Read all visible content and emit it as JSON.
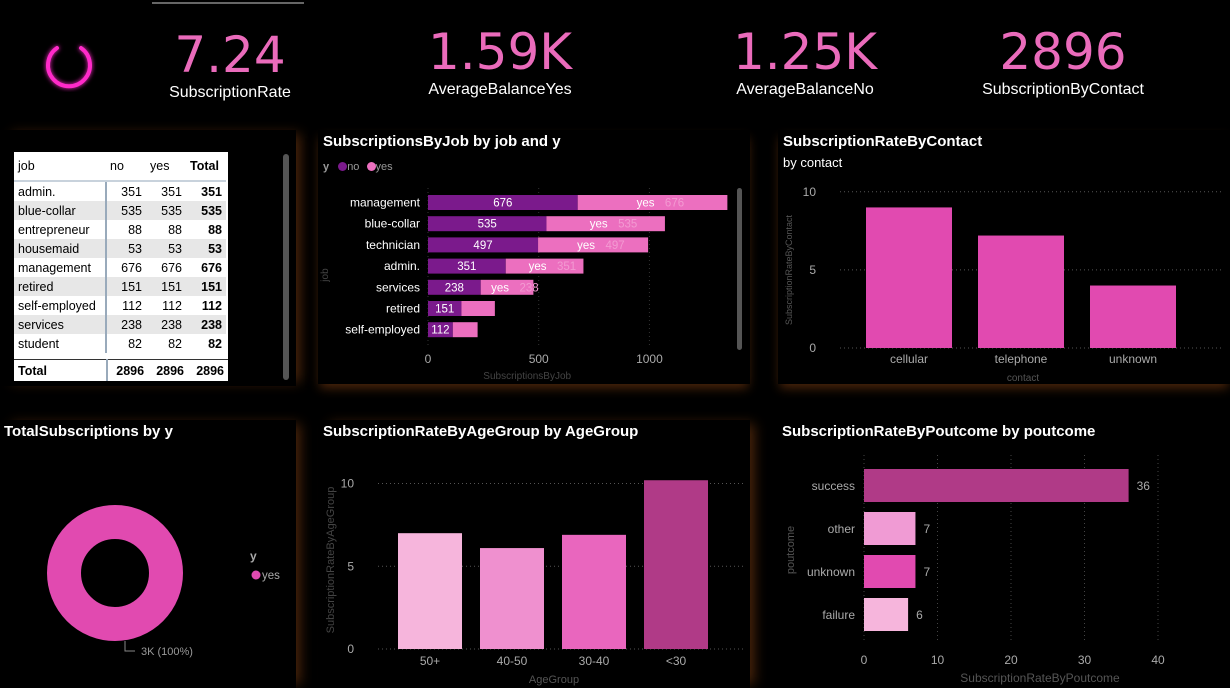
{
  "kpis": [
    {
      "value": "7.24",
      "label": "SubscriptionRate"
    },
    {
      "value": "1.59K",
      "label": "AverageBalanceYes"
    },
    {
      "value": "1.25K",
      "label": "AverageBalanceNo"
    },
    {
      "value": "2896",
      "label": "SubscriptionByContact"
    }
  ],
  "power_icon": "power-icon",
  "matrix": {
    "headers": [
      "job",
      "no",
      "yes",
      "Total"
    ],
    "rows": [
      [
        "admin.",
        "351",
        "351",
        "351"
      ],
      [
        "blue-collar",
        "535",
        "535",
        "535"
      ],
      [
        "entrepreneur",
        "88",
        "88",
        "88"
      ],
      [
        "housemaid",
        "53",
        "53",
        "53"
      ],
      [
        "management",
        "676",
        "676",
        "676"
      ],
      [
        "retired",
        "151",
        "151",
        "151"
      ],
      [
        "self-employed",
        "112",
        "112",
        "112"
      ],
      [
        "services",
        "238",
        "238",
        "238"
      ],
      [
        "student",
        "82",
        "82",
        "82"
      ]
    ],
    "total": [
      "Total",
      "2896",
      "2896",
      "2896"
    ]
  },
  "colors": {
    "accent": "#ea6bbb",
    "no": "#7b1a8c",
    "yes": "#ec6fbf",
    "pink": "#e14ab0",
    "dark_pink": "#b03a87",
    "light_pink": "#f6b5dc"
  },
  "chart_data": [
    {
      "type": "bar",
      "orientation": "horizontal",
      "stacked": true,
      "title": "SubscriptionsByJob by job and y",
      "legend_title": "y",
      "legend": [
        "no",
        "yes"
      ],
      "xlabel": "SubscriptionsByJob",
      "ylabel": "job",
      "categories": [
        "management",
        "blue-collar",
        "technician",
        "admin.",
        "services",
        "retired",
        "self-employed"
      ],
      "series": [
        {
          "name": "no",
          "values": [
            676,
            535,
            497,
            351,
            238,
            151,
            112
          ]
        },
        {
          "name": "yes",
          "values": [
            676,
            535,
            497,
            351,
            238,
            151,
            112
          ]
        }
      ],
      "xticks": [
        "0",
        "500",
        "1000"
      ],
      "xlim": [
        0,
        1400
      ]
    },
    {
      "type": "bar",
      "title": "SubscriptionRateByContact",
      "subtitle": "by contact",
      "xlabel": "contact",
      "ylabel": "SubscriptionRateByContact",
      "categories": [
        "cellular",
        "telephone",
        "unknown"
      ],
      "values": [
        9.0,
        7.2,
        4.0
      ],
      "yticks": [
        "0",
        "5",
        "10"
      ],
      "ylim": [
        0,
        10.5
      ]
    },
    {
      "type": "pie",
      "donut": true,
      "title": "TotalSubscriptions by y",
      "legend_title": "y",
      "legend": [
        "yes"
      ],
      "slices": [
        {
          "label": "yes",
          "value": 2896
        }
      ],
      "data_label": "3K (100%)"
    },
    {
      "type": "bar",
      "title": "SubscriptionRateByAgeGroup by AgeGroup",
      "xlabel": "AgeGroup",
      "ylabel": "SubscriptionRateByAgeGroup",
      "categories": [
        "50+",
        "40-50",
        "30-40",
        "<30"
      ],
      "values": [
        7.0,
        6.1,
        6.9,
        10.2
      ],
      "yticks": [
        "0",
        "5",
        "10"
      ],
      "ylim": [
        0,
        11
      ]
    },
    {
      "type": "bar",
      "orientation": "horizontal",
      "title": "SubscriptionRateByPoutcome by poutcome",
      "xlabel": "SubscriptionRateByPoutcome",
      "ylabel": "poutcome",
      "categories": [
        "success",
        "other",
        "unknown",
        "failure"
      ],
      "values": [
        36,
        7,
        7,
        6
      ],
      "data_labels": [
        "36",
        "7",
        "7",
        "6"
      ],
      "xticks": [
        "0",
        "10",
        "20",
        "30",
        "40"
      ],
      "xlim": [
        0,
        40
      ]
    }
  ]
}
